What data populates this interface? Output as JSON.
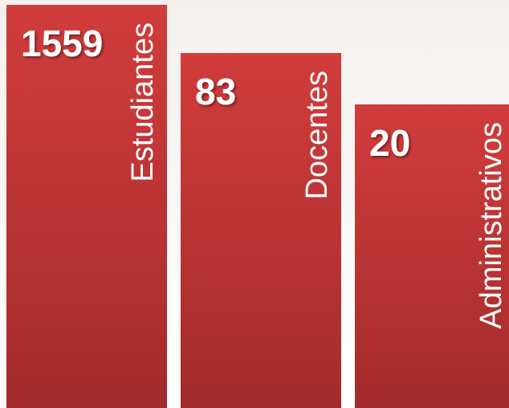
{
  "items": [
    {
      "number": "1559",
      "label": "Estudiantes"
    },
    {
      "number": "83",
      "label": "Docentes"
    },
    {
      "number": "20",
      "label": "Administrativos"
    }
  ]
}
